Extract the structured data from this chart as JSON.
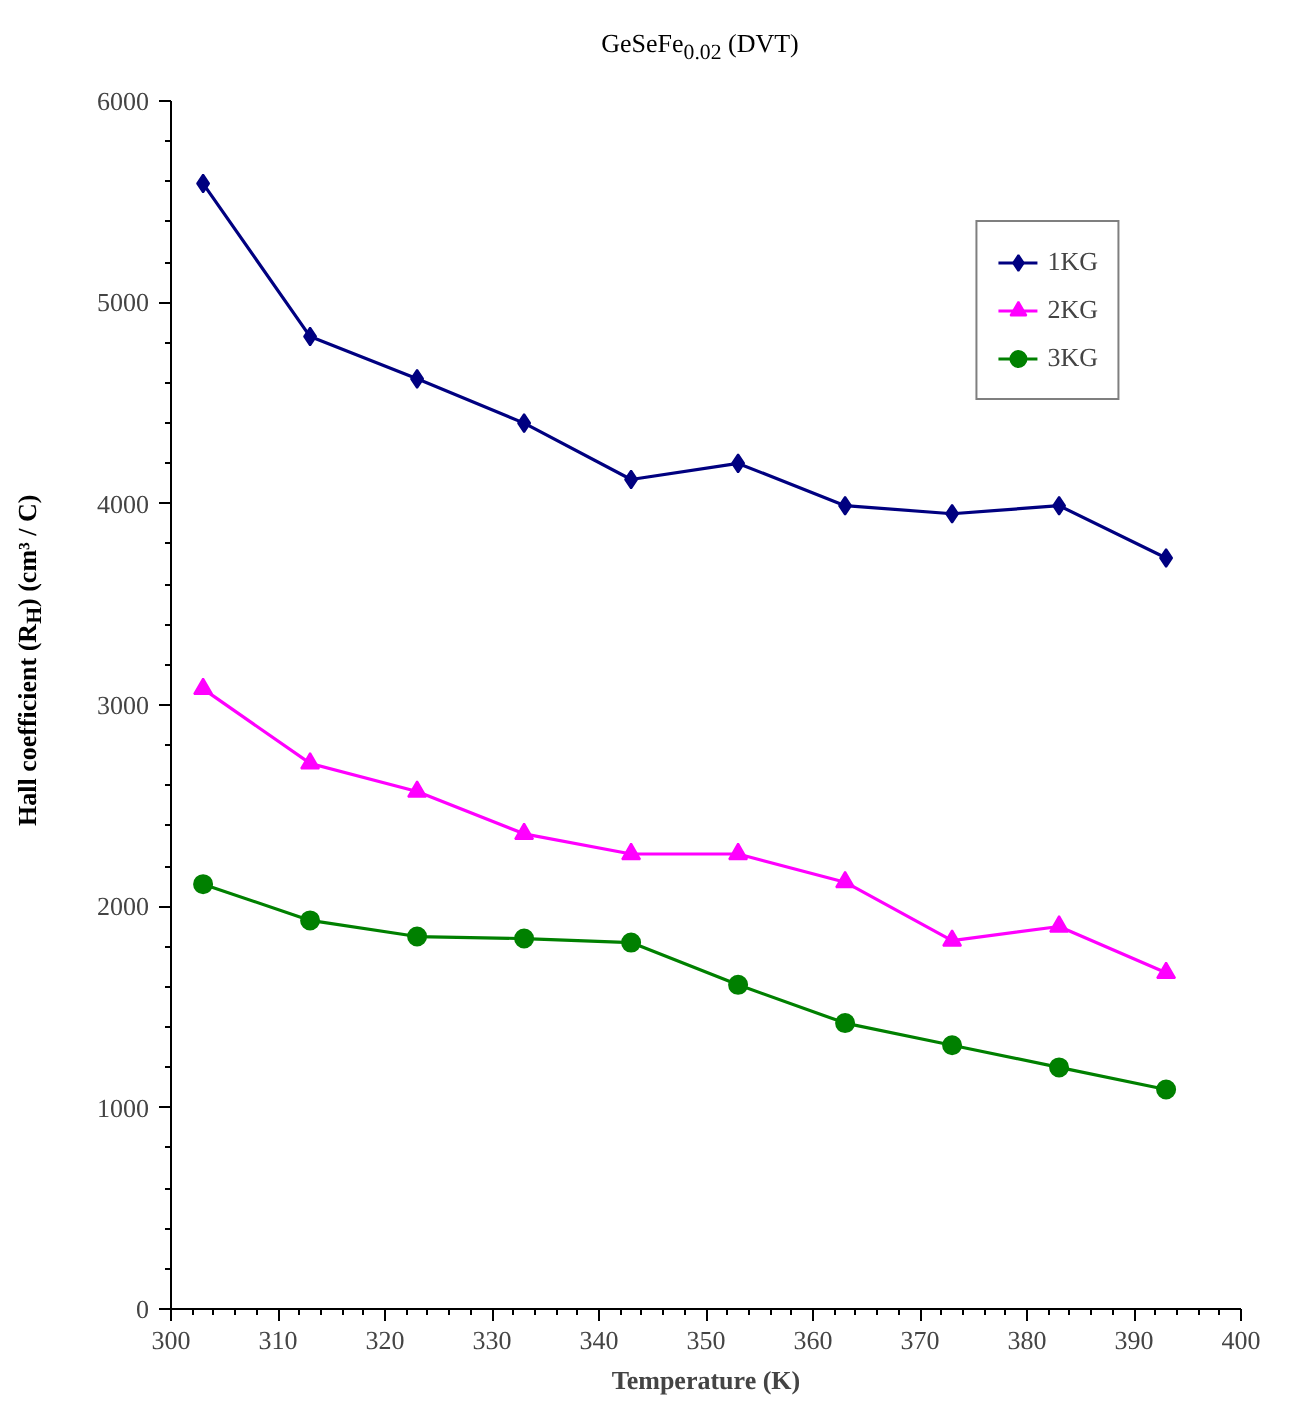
{
  "chart_data": {
    "type": "line",
    "title": "GeSeFe$_{0.02}$ (DVT)",
    "xlabel": "Temperature (K)",
    "ylabel": "Hall coefficient (R$_{H}$) (cm³ / C)",
    "x": [
      303,
      313,
      323,
      333,
      343,
      353,
      363,
      373,
      383,
      393
    ],
    "series": [
      {
        "name": "1KG",
        "color": "#000080",
        "marker": "diamond",
        "values": [
          5590,
          4830,
          4620,
          4400,
          4120,
          4200,
          3990,
          3950,
          3990,
          3730
        ]
      },
      {
        "name": "2KG",
        "color": "#ff00ff",
        "marker": "triangle",
        "values": [
          3080,
          2710,
          2570,
          2360,
          2260,
          2260,
          2120,
          1830,
          1900,
          1670
        ]
      },
      {
        "name": "3KG",
        "color": "#008000",
        "marker": "circle",
        "values": [
          2110,
          1930,
          1850,
          1840,
          1820,
          1610,
          1420,
          1310,
          1200,
          1090
        ]
      }
    ],
    "xlim": [
      300,
      400
    ],
    "xticks": [
      300,
      310,
      320,
      330,
      340,
      350,
      360,
      370,
      380,
      390,
      400
    ],
    "ylim": [
      0,
      6000
    ],
    "yticks": [
      0,
      1000,
      2000,
      3000,
      4000,
      5000,
      6000
    ],
    "grid": false,
    "legend": "top right",
    "line_style": "solid"
  }
}
